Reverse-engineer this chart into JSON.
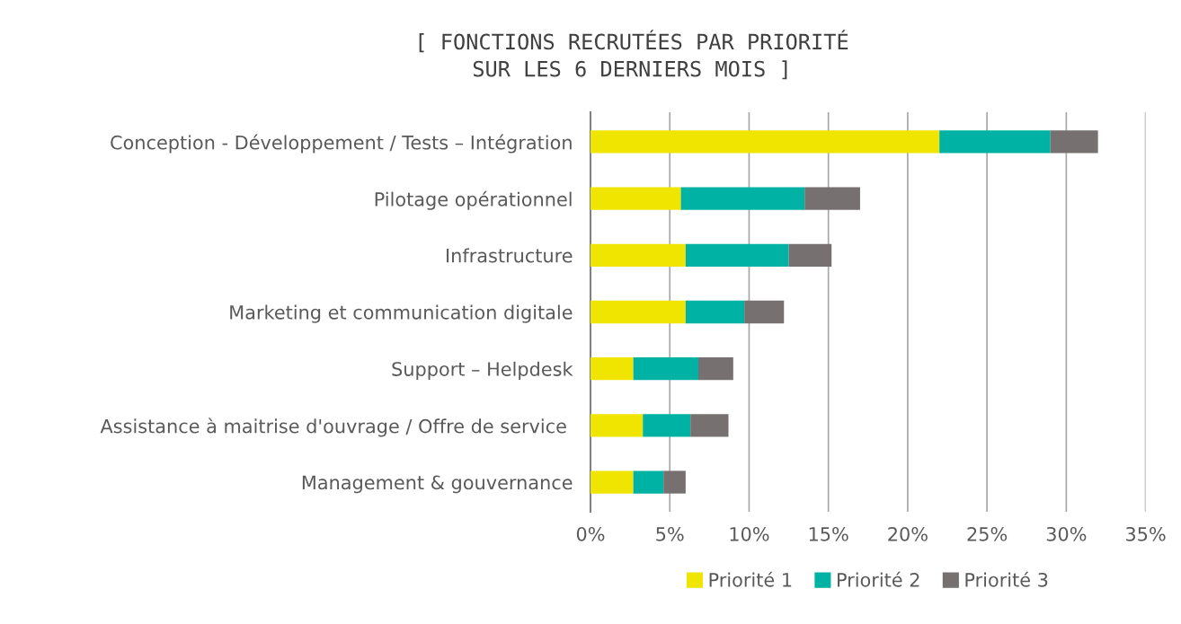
{
  "chart_data": {
    "type": "bar",
    "orientation": "horizontal",
    "stacked": true,
    "title": "[ FONCTIONS RECRUTÉES PAR PRIORITÉ\nSUR LES 6 DERNIERS MOIS ]",
    "categories": [
      "Conception - Développement / Tests – Intégration",
      "Pilotage opérationnel",
      "Infrastructure",
      "Marketing et communication digitale",
      "Support – Helpdesk",
      "Assistance à maitrise d'ouvrage / Offre de service ",
      "Management & gouvernance"
    ],
    "series": [
      {
        "name": "Priorité 1",
        "color": "#f0e500",
        "values": [
          22,
          5.7,
          6.0,
          6.0,
          2.7,
          3.3,
          2.7
        ]
      },
      {
        "name": "Priorité 2",
        "color": "#00b2a3",
        "values": [
          7.0,
          7.8,
          6.5,
          3.7,
          4.1,
          3.0,
          1.9
        ]
      },
      {
        "name": "Priorité 3",
        "color": "#767170",
        "values": [
          3.0,
          3.5,
          2.7,
          2.5,
          2.2,
          2.4,
          1.4
        ]
      }
    ],
    "xlim": [
      0,
      35
    ],
    "xticks": [
      {
        "value": 0,
        "label": "0%"
      },
      {
        "value": 5,
        "label": "5%"
      },
      {
        "value": 10,
        "label": "10%"
      },
      {
        "value": 15,
        "label": "15%"
      },
      {
        "value": 20,
        "label": "20%"
      },
      {
        "value": 25,
        "label": "25%"
      },
      {
        "value": 30,
        "label": "30%"
      },
      {
        "value": 35,
        "label": "35%"
      }
    ],
    "grid": "x",
    "legend": "bottom"
  }
}
